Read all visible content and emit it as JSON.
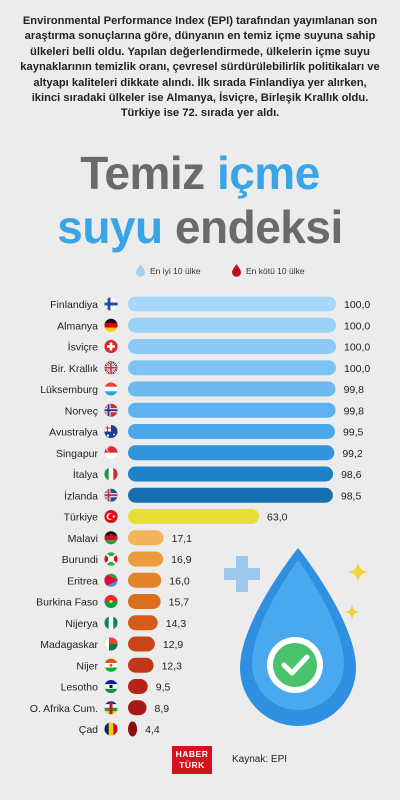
{
  "intro": "Environmental Performance Index (EPI) tarafından yayımlanan son araştırma sonuçlarına göre, dünyanın en temiz içme suyuna sahip ülkeleri belli oldu. Yapılan değerlendirmede, ülkelerin içme suyu kaynaklarının temizlik oranı, çevresel sürdürülebilirlik politikaları ve altyapı kaliteleri dikkate alındı. İlk sırada  Finlandiya yer alırken, ikinci sıradaki ülkeler ise Almanya, İsviçre, Birleşik Krallık oldu. Türkiye ise 72. sırada yer aldı.",
  "title": {
    "part1": "Temiz ",
    "part2": "içme",
    "part3": "suyu",
    "part4": " endeksi"
  },
  "legend": {
    "best": "En iyi 10 ülke",
    "worst": "En kötü 10 ülke"
  },
  "colors": {
    "best_drop": "#9fd2f5",
    "worst_drop": "#c0101a",
    "turkey": "#e6e036",
    "accent_blue": "#3aa5e6"
  },
  "chart_data": {
    "type": "bar",
    "orientation": "horizontal",
    "xlim": [
      0,
      100
    ],
    "value_format": "comma-decimal",
    "categories": [
      "Finlandiya",
      "Almanya",
      "İsviçre",
      "Bir. Krallık",
      "Lüksemburg",
      "Norveç",
      "Avustralya",
      "Singapur",
      "İtalya",
      "İzlanda",
      "Türkiye",
      "Malavi",
      "Burundi",
      "Eritrea",
      "Burkina Faso",
      "Nijerya",
      "Madagaskar",
      "Nijer",
      "Lesotho",
      "O. Afrika Cum.",
      "Çad"
    ],
    "labels": [
      "100,0",
      "100,0",
      "100,0",
      "100,0",
      "99,8",
      "99,8",
      "99,5",
      "99,2",
      "98,6",
      "98,5",
      "63,0",
      "17,1",
      "16,9",
      "16,0",
      "15,7",
      "14,3",
      "12,9",
      "12,3",
      "9,5",
      "8,9",
      "4,4"
    ],
    "values": [
      100,
      100,
      100,
      100,
      99.8,
      99.8,
      99.5,
      99.2,
      98.6,
      98.5,
      63.0,
      17.1,
      16.9,
      16.0,
      15.7,
      14.3,
      12.9,
      12.3,
      9.5,
      8.9,
      4.4
    ],
    "colors": [
      "#a7d7f8",
      "#9ad1f7",
      "#8ccaf5",
      "#7ec3f3",
      "#6cbaf0",
      "#5cb2ee",
      "#4aa8ea",
      "#2f95dc",
      "#1e82c8",
      "#166fae",
      "#e6e036",
      "#f2b45a",
      "#eb9c3f",
      "#e28327",
      "#db6f1d",
      "#d45c18",
      "#cb4418",
      "#c23717",
      "#b52516",
      "#a81815",
      "#8e0b0f"
    ],
    "flags": [
      "finland",
      "germany",
      "switzerland",
      "uk",
      "luxembourg",
      "norway",
      "australia",
      "singapore",
      "italy",
      "iceland",
      "turkey",
      "malawi",
      "burundi",
      "eritrea",
      "burkina-faso",
      "nigeria",
      "madagascar",
      "niger",
      "lesotho",
      "central-african-republic",
      "chad"
    ]
  },
  "footer": {
    "brand_line1": "HABER",
    "brand_line2": "TÜRK",
    "source": "Kaynak: EPI"
  }
}
